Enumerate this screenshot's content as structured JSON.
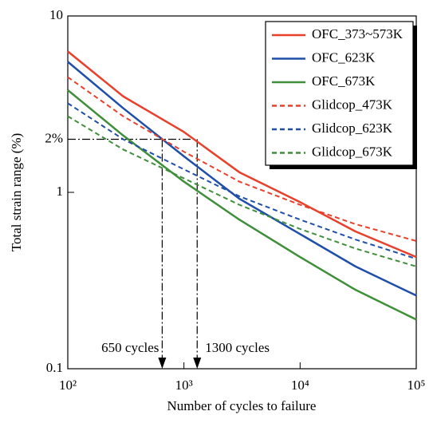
{
  "chart_data": {
    "type": "line",
    "x_label": "Number of cycles to failure",
    "y_label": "Total strain range (%)",
    "x": [
      100,
      300,
      1000,
      3000,
      10000,
      30000,
      100000
    ],
    "xscale": "log",
    "yscale": "log",
    "xlim": [
      100,
      100000
    ],
    "ylim": [
      0.1,
      10
    ],
    "xticks": [
      {
        "value": 100,
        "label": "10²"
      },
      {
        "value": 1000,
        "label": "10³"
      },
      {
        "value": 10000,
        "label": "10⁴"
      },
      {
        "value": 100000,
        "label": "10⁵"
      }
    ],
    "yticks": [
      0.1,
      1,
      {
        "value": 2,
        "label": "2%"
      },
      10
    ],
    "grid": false,
    "legend": "upper right",
    "series": [
      {
        "name": "OFC_373~573K",
        "color": "#e8402a",
        "style": "solid",
        "values": [
          6.3,
          3.5,
          2.2,
          1.3,
          0.88,
          0.6,
          0.43
        ]
      },
      {
        "name": "OFC_623K",
        "color": "#1f4fa8",
        "style": "solid",
        "values": [
          5.5,
          3.0,
          1.6,
          0.92,
          0.58,
          0.38,
          0.26
        ]
      },
      {
        "name": "OFC_673K",
        "color": "#3f8f3a",
        "style": "solid",
        "values": [
          3.8,
          2.1,
          1.15,
          0.7,
          0.43,
          0.28,
          0.19
        ]
      },
      {
        "name": "Glidcop_473K",
        "color": "#e8402a",
        "style": "dashed",
        "values": [
          4.5,
          2.7,
          1.7,
          1.15,
          0.85,
          0.66,
          0.53
        ]
      },
      {
        "name": "Glidcop_623K",
        "color": "#1f4fa8",
        "style": "dashed",
        "values": [
          3.2,
          2.0,
          1.35,
          0.95,
          0.7,
          0.54,
          0.42
        ]
      },
      {
        "name": "Glidcop_673K",
        "color": "#3f8f3a",
        "style": "dashed",
        "values": [
          2.7,
          1.75,
          1.2,
          0.85,
          0.62,
          0.48,
          0.38
        ]
      }
    ],
    "annotations": [
      {
        "text": "650 cycles",
        "x": 650
      },
      {
        "text": "1300 cycles",
        "x": 1300
      }
    ]
  }
}
